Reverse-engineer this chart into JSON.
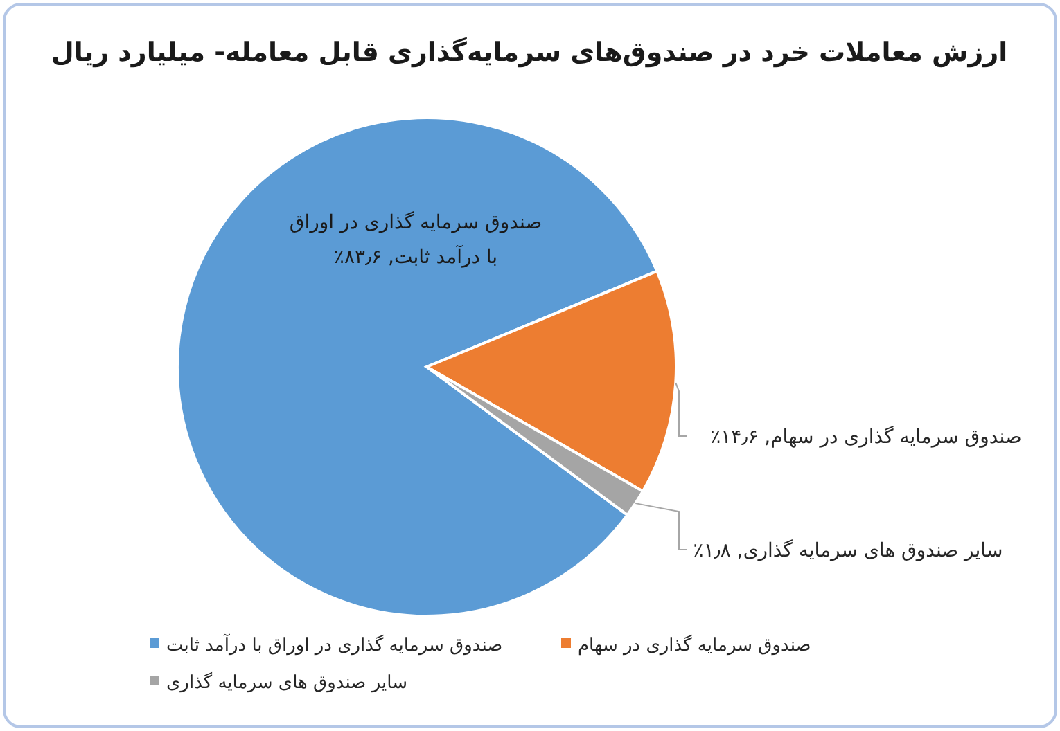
{
  "chart_data": {
    "type": "pie",
    "title": "ارزش معاملات خرد در صندوق‌های سرمایه‌گذاری قابل معامله- میلیارد ریال",
    "categories": [
      "صندوق سرمایه گذاری در اوراق با درآمد ثابت",
      "صندوق سرمایه گذاری در سهام",
      "سایر صندوق های سرمایه گذاری"
    ],
    "values": [
      83.6,
      14.6,
      1.8
    ],
    "colors": [
      "#5b9bd5",
      "#ed7d31",
      "#a5a5a5"
    ],
    "value_labels": [
      "صندوق سرمایه گذاری در اوراق\nبا درآمد ثابت, ۸۳٫۶٪",
      "صندوق سرمایه گذاری در سهام, ۱۴٫۶٪",
      "سایر صندوق های سرمایه گذاری, ۱٫۸٪"
    ],
    "legend": "bottom"
  }
}
